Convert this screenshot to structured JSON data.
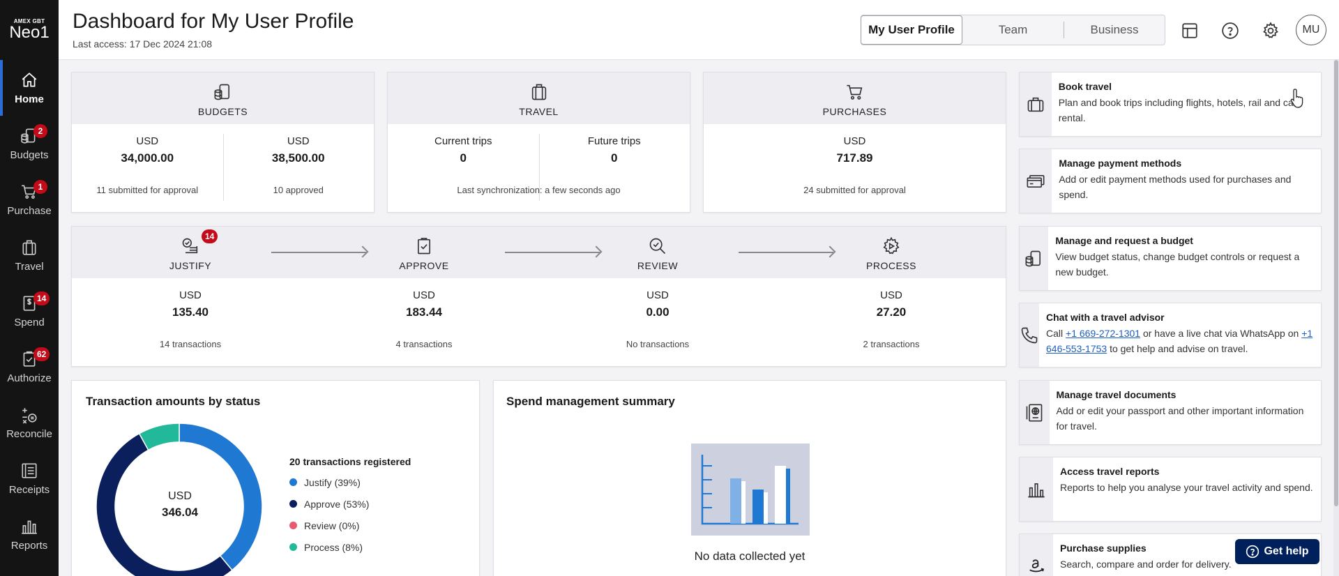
{
  "logo": {
    "sup": "AMEX GBT",
    "main": "Neo1"
  },
  "sidebar": {
    "items": [
      {
        "label": "Home",
        "icon": "home-icon",
        "badge": ""
      },
      {
        "label": "Budgets",
        "icon": "budgets-icon",
        "badge": "2"
      },
      {
        "label": "Purchase",
        "icon": "cart-icon",
        "badge": "1"
      },
      {
        "label": "Travel",
        "icon": "suitcase-icon",
        "badge": ""
      },
      {
        "label": "Spend",
        "icon": "receipt-dollar-icon",
        "badge": "14"
      },
      {
        "label": "Authorize",
        "icon": "clipboard-check-icon",
        "badge": "62"
      },
      {
        "label": "Reconcile",
        "icon": "reconcile-icon",
        "badge": ""
      },
      {
        "label": "Receipts",
        "icon": "receipts-icon",
        "badge": ""
      },
      {
        "label": "Reports",
        "icon": "bar-chart-icon",
        "badge": ""
      }
    ]
  },
  "header": {
    "title": "Dashboard for My User Profile",
    "last_access": "Last access: 17 Dec 2024 21:08",
    "switcher": [
      "My User Profile",
      "Team",
      "Business"
    ],
    "avatar": "MU"
  },
  "budgets": {
    "label": "BUDGETS",
    "cols": [
      {
        "currency": "USD",
        "amount": "34,000.00",
        "note": "11 submitted for approval"
      },
      {
        "currency": "USD",
        "amount": "38,500.00",
        "note": "10 approved"
      }
    ]
  },
  "travel": {
    "label": "TRAVEL",
    "cols": [
      {
        "label": "Current trips",
        "value": "0"
      },
      {
        "label": "Future trips",
        "value": "0"
      }
    ],
    "note": "Last synchronization: a few seconds ago"
  },
  "purchases": {
    "label": "PURCHASES",
    "currency": "USD",
    "amount": "717.89",
    "note": "24 submitted for approval"
  },
  "flow": {
    "stages": [
      {
        "label": "JUSTIFY",
        "badge": "14",
        "currency": "USD",
        "amount": "135.40",
        "note": "14 transactions"
      },
      {
        "label": "APPROVE",
        "badge": "",
        "currency": "USD",
        "amount": "183.44",
        "note": "4 transactions"
      },
      {
        "label": "REVIEW",
        "badge": "",
        "currency": "USD",
        "amount": "0.00",
        "note": "No transactions"
      },
      {
        "label": "PROCESS",
        "badge": "",
        "currency": "USD",
        "amount": "27.20",
        "note": "2 transactions"
      }
    ]
  },
  "status_chart": {
    "title": "Transaction amounts by status",
    "center_currency": "USD",
    "center_amount": "346.04",
    "legend_title": "20 transactions registered",
    "colors": {
      "justify": "#1f78d1",
      "approve": "#0a1f5c",
      "review": "#e85a6e",
      "process": "#22b89a"
    }
  },
  "chart_data": {
    "type": "pie",
    "categories": [
      "Justify (39%)",
      "Approve (53%)",
      "Review (0%)",
      "Process (8%)"
    ],
    "values": [
      39,
      53,
      0,
      8
    ]
  },
  "spend_summary": {
    "title": "Spend management summary",
    "empty_text": "No data collected yet"
  },
  "quick_links": [
    {
      "title": "Book travel",
      "desc": "Plan and book trips including flights, hotels, rail and car rental.",
      "icon": "suitcase-icon"
    },
    {
      "title": "Manage payment methods",
      "desc": "Add or edit payment methods used for purchases and spend.",
      "icon": "credit-card-icon"
    },
    {
      "title": "Manage and request a budget",
      "desc": "View budget status, change budget controls or request a new budget.",
      "icon": "budgets-icon"
    },
    {
      "title": "Chat with a travel advisor",
      "desc_pre": "Call ",
      "phone1": "+1 669-272-1301",
      "desc_mid": " or have a live chat via WhatsApp on ",
      "phone2": "+1 646-553-1753",
      "desc_post": " to get help and advise on travel.",
      "icon": "phone-icon"
    },
    {
      "title": "Manage travel documents",
      "desc": "Add or edit your passport and other important information for travel.",
      "icon": "passport-icon"
    },
    {
      "title": "Access travel reports",
      "desc": "Reports to help you analyse your travel activity and spend.",
      "icon": "bar-chart-icon"
    },
    {
      "title": "Purchase supplies",
      "desc": "Search, compare and order for delivery.",
      "icon": "amazon-icon"
    }
  ],
  "get_help": "Get help"
}
